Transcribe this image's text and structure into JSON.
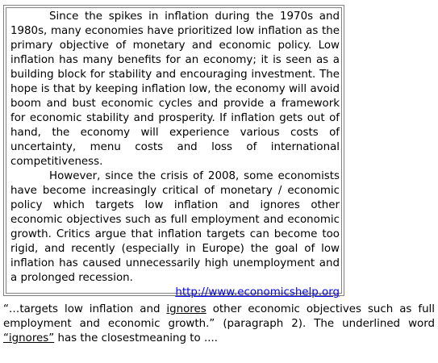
{
  "passage": {
    "paragraph_1": "Since the spikes in inflation during the 1970s and 1980s, many economies have prioritized low inflation as the primary objective of monetary and economic policy. Low inflation has many benefits for an economy; it is seen as a building block for stability and encouraging investment. The hope is that by keeping inflation low, the economy will avoid boom and bust economic cycles and provide a framework for economic stability and prosperity. If inflation gets out of hand, the economy will experience various costs of uncertainty, menu costs and loss of international competitiveness.",
    "paragraph_2": "However, since the crisis of 2008, some economists have become increasingly critical of monetary / economic policy which targets low inflation and ignores other economic objectives such as full employment and economic growth. Critics argue that inflation targets can become too rigid, and recently (especially in Europe) the goal of low inflation has caused unnecessarily high unemployment and a prolonged recession.",
    "source_url": "http://www.economicshelp.org"
  },
  "question": {
    "quote_open": "“…targets low inflation and ",
    "quote_word": "ignores",
    "quote_rest": " other economic objectives such as full employment and economic growth.” (paragraph 2). The underlined word ",
    "target_word": "“ignores”",
    "question_end": " has the closestmeaning to ...."
  }
}
